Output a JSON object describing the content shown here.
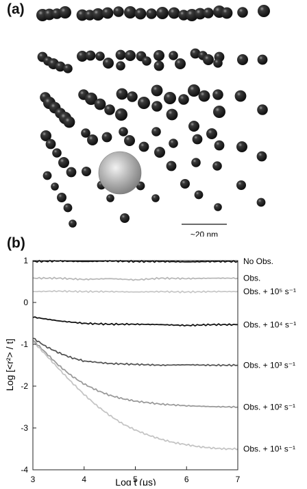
{
  "panel_a": {
    "label": "(a)",
    "scale_bar_label": "~20 nm"
  },
  "panel_b": {
    "label": "(b)"
  },
  "chart_data": {
    "type": "line",
    "xlabel": "Log t (μs)",
    "ylabel": "Log [<r²> / t]",
    "xlim": [
      3,
      7
    ],
    "ylim": [
      -4,
      1
    ],
    "xticks": [
      "3",
      "4",
      "5",
      "6",
      "7"
    ],
    "yticks": [
      "1",
      "0",
      "-1",
      "-2",
      "-3",
      "-4"
    ],
    "grid": false,
    "series": [
      {
        "name": "No Obs.",
        "color": "#111111",
        "x": [
          3,
          3.5,
          4,
          4.5,
          5,
          5.5,
          6,
          6.5,
          7
        ],
        "y": [
          0.98,
          0.99,
          0.98,
          0.99,
          0.98,
          0.98,
          0.97,
          0.98,
          0.98
        ]
      },
      {
        "name": "Obs.",
        "color": "#b8b8b8",
        "x": [
          3,
          3.5,
          4,
          4.5,
          5,
          5.5,
          6,
          6.5,
          7
        ],
        "y": [
          0.58,
          0.58,
          0.55,
          0.57,
          0.54,
          0.58,
          0.57,
          0.58,
          0.58
        ]
      },
      {
        "name": "Obs. + 10⁵ s⁻¹",
        "color": "#c8c8c8",
        "x": [
          3,
          3.5,
          4,
          4.5,
          5,
          5.5,
          6,
          6.5,
          7
        ],
        "y": [
          0.26,
          0.27,
          0.26,
          0.26,
          0.25,
          0.26,
          0.25,
          0.26,
          0.26
        ]
      },
      {
        "name": "Obs. + 10⁴ s⁻¹",
        "color": "#111111",
        "x": [
          3,
          3.5,
          4,
          4.5,
          5,
          5.5,
          6,
          6.5,
          7
        ],
        "y": [
          -0.35,
          -0.44,
          -0.5,
          -0.52,
          -0.52,
          -0.53,
          -0.55,
          -0.53,
          -0.53
        ]
      },
      {
        "name": "Obs. + 10³ s⁻¹",
        "color": "#555555",
        "x": [
          3,
          3.25,
          3.5,
          3.75,
          4,
          4.5,
          5,
          5.5,
          6,
          6.5,
          7
        ],
        "y": [
          -0.85,
          -1.05,
          -1.2,
          -1.32,
          -1.4,
          -1.46,
          -1.48,
          -1.5,
          -1.49,
          -1.5,
          -1.5
        ]
      },
      {
        "name": "Obs. + 10² s⁻¹",
        "color": "#9a9a9a",
        "x": [
          3,
          3.25,
          3.5,
          3.75,
          4,
          4.25,
          4.5,
          4.75,
          5,
          5.5,
          6,
          6.5,
          7
        ],
        "y": [
          -0.9,
          -1.2,
          -1.5,
          -1.75,
          -1.95,
          -2.1,
          -2.22,
          -2.3,
          -2.36,
          -2.43,
          -2.47,
          -2.49,
          -2.5
        ]
      },
      {
        "name": "Obs. + 10¹ s⁻¹",
        "color": "#c4c4c4",
        "x": [
          3,
          3.25,
          3.5,
          3.75,
          4,
          4.25,
          4.5,
          4.75,
          5,
          5.25,
          5.5,
          5.75,
          6,
          6.25,
          6.5,
          6.75,
          7
        ],
        "y": [
          -0.93,
          -1.25,
          -1.58,
          -1.9,
          -2.2,
          -2.47,
          -2.7,
          -2.9,
          -3.05,
          -3.17,
          -3.27,
          -3.35,
          -3.4,
          -3.45,
          -3.48,
          -3.5,
          -3.5
        ]
      }
    ]
  }
}
